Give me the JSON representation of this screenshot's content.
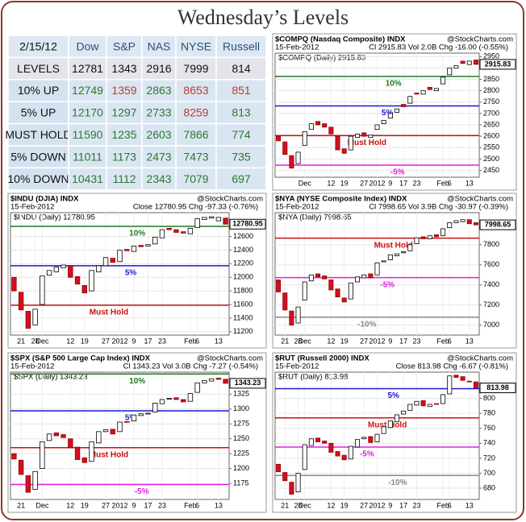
{
  "title": "Wednesday’s Levels",
  "table": {
    "columns": [
      "2/15/12",
      "Dow",
      "S&P",
      "NAS",
      "NYSE",
      "Russell"
    ],
    "rows": [
      [
        "LEVELS",
        "12781",
        "1343",
        "2916",
        "7999",
        "814"
      ],
      [
        "10% UP",
        "12749",
        "1359",
        "2863",
        "8653",
        "851"
      ],
      [
        "5% UP",
        "12170",
        "1297",
        "2733",
        "8259",
        "813"
      ],
      [
        "MUST HOLD",
        "11590",
        "1235",
        "2603",
        "7866",
        "774"
      ],
      [
        "5% DOWN",
        "11011",
        "1173",
        "2473",
        "7473",
        "735"
      ],
      [
        "10% DOWN",
        "10431",
        "1112",
        "2343",
        "7079",
        "697"
      ]
    ]
  },
  "chart_data": [
    {
      "type": "candlestick",
      "title": "$COMPQ (Nasdaq Composite) INDX",
      "source": "@StockCharts.com",
      "date": "15-Feb-2012",
      "stats": "Cl 2915.83 Vol 2.0B Chg -16.00 (-0.55%)",
      "legend": "$COMPQ (Daily) 2915.83",
      "categories": [
        null,
        null,
        null,
        null,
        "Dec",
        null,
        null,
        null,
        "12",
        null,
        "19",
        null,
        null,
        "27",
        null,
        "2012",
        null,
        "9",
        null,
        "17",
        null,
        "23",
        null,
        null,
        null,
        "Feb",
        "6",
        null,
        null,
        "13",
        null
      ],
      "open": [
        2600,
        2575,
        2515,
        2480,
        2560,
        2630,
        2665,
        2655,
        2640,
        2600,
        2545,
        2540,
        2595,
        2615,
        2595,
        2630,
        2655,
        2680,
        2705,
        2740,
        2745,
        2790,
        2785,
        2815,
        2800,
        2830,
        2870,
        2900,
        2930,
        2915,
        2935
      ],
      "close": [
        2580,
        2520,
        2460,
        2530,
        2620,
        2655,
        2650,
        2640,
        2610,
        2540,
        2525,
        2600,
        2610,
        2600,
        2605,
        2650,
        2670,
        2700,
        2720,
        2730,
        2775,
        2785,
        2800,
        2805,
        2810,
        2860,
        2900,
        2910,
        2920,
        2930,
        2915.83
      ],
      "levels": [
        {
          "name": "10%",
          "value": 2863,
          "color": "#1f7a1f"
        },
        {
          "name": "5%",
          "value": 2733,
          "color": "#1a1acc"
        },
        {
          "name": "Must Hold",
          "value": 2603,
          "color": "#cc1111"
        },
        {
          "name": "-5%",
          "value": 2473,
          "color": "#e020e0"
        }
      ],
      "ylim": [
        2420,
        2965
      ],
      "yticks": [
        2450,
        2500,
        2550,
        2600,
        2650,
        2700,
        2750,
        2800,
        2850,
        2900,
        2950
      ]
    },
    {
      "type": "candlestick",
      "title": "$INDU (DJIA) INDX",
      "source": "@StockCharts.com",
      "date": "15-Feb-2012",
      "stats": "Close 12780.95 Chg -97.33 (-0.76%)",
      "legend": "$INDU (Daily) 12780.95",
      "categories": [
        null,
        "21",
        null,
        "28",
        "Dec",
        null,
        null,
        null,
        "12",
        null,
        "19",
        null,
        null,
        "27",
        null,
        "2012",
        null,
        "9",
        null,
        "17",
        null,
        "23",
        null,
        null,
        null,
        "Feb",
        "6",
        null,
        null,
        "13",
        null
      ],
      "open": [
        12000,
        11780,
        11500,
        11300,
        11600,
        12030,
        12080,
        12140,
        12170,
        12010,
        11880,
        11800,
        12080,
        12170,
        12280,
        12230,
        12410,
        12380,
        12470,
        12460,
        12490,
        12580,
        12720,
        12700,
        12670,
        12640,
        12730,
        12850,
        12870,
        12830,
        12870
      ],
      "close": [
        11800,
        11520,
        11250,
        11530,
        12020,
        12100,
        12150,
        12180,
        12000,
        11900,
        11770,
        12100,
        12170,
        12290,
        12220,
        12400,
        12390,
        12460,
        12450,
        12480,
        12590,
        12700,
        12700,
        12660,
        12650,
        12720,
        12860,
        12880,
        12890,
        12880,
        12780.95
      ],
      "levels": [
        {
          "name": "10%",
          "value": 12749,
          "color": "#1f7a1f"
        },
        {
          "name": "5%",
          "value": 12170,
          "color": "#1a1acc"
        },
        {
          "name": "Must Hold",
          "value": 11590,
          "color": "#cc1111"
        }
      ],
      "ylim": [
        11150,
        12950
      ],
      "yticks": [
        11200,
        11400,
        11600,
        11800,
        12000,
        12200,
        12400,
        12600
      ]
    },
    {
      "type": "candlestick",
      "title": "$NYA (NYSE Composite Index) INDX",
      "source": "@StockCharts.com",
      "date": "15-Feb-2012",
      "stats": "Cl 7998.65 Vol 3.9B Chg -30.97 (-0.39%)",
      "legend": "$NYA (Daily) 7998.65",
      "categories": [
        null,
        "21",
        null,
        "28",
        "Dec",
        null,
        null,
        null,
        "12",
        null,
        "19",
        null,
        null,
        "27",
        null,
        "2012",
        null,
        "9",
        null,
        "17",
        null,
        "23",
        null,
        null,
        null,
        "Feb",
        "6",
        null,
        null,
        "13",
        null
      ],
      "open": [
        7450,
        7320,
        7140,
        7020,
        7250,
        7440,
        7510,
        7490,
        7450,
        7360,
        7270,
        7260,
        7430,
        7470,
        7510,
        7500,
        7630,
        7650,
        7690,
        7720,
        7740,
        7810,
        7880,
        7860,
        7900,
        7890,
        7970,
        8020,
        8030,
        8050,
        8020
      ],
      "close": [
        7330,
        7150,
        7000,
        7180,
        7430,
        7500,
        7480,
        7460,
        7350,
        7280,
        7230,
        7420,
        7480,
        7500,
        7470,
        7620,
        7640,
        7700,
        7710,
        7730,
        7800,
        7870,
        7860,
        7890,
        7880,
        7960,
        8020,
        8040,
        8050,
        8010,
        7998.65
      ],
      "levels": [
        {
          "name": "Must Hold",
          "value": 7866,
          "color": "#cc1111"
        },
        {
          "name": "-5%",
          "value": 7473,
          "color": "#e020e0"
        },
        {
          "name": "-10%",
          "value": 7079,
          "color": "#888888"
        }
      ],
      "ylim": [
        6900,
        8120
      ],
      "yticks": [
        7000,
        7200,
        7400,
        7600,
        7800
      ]
    },
    {
      "type": "candlestick",
      "title": "$SPX (S&P 500 Large Cap Index) INDX",
      "source": "@StockCharts.com",
      "date": "15-Feb-2012",
      "stats": "Cl 1343.23 Vol 3.0B Chg -7.27 (-0.54%)",
      "legend": "$SPX (Daily) 1343.23",
      "categories": [
        null,
        "21",
        null,
        null,
        "Dec",
        null,
        null,
        null,
        "12",
        null,
        "19",
        null,
        null,
        "27",
        null,
        "2012",
        null,
        "9",
        null,
        "17",
        null,
        "23",
        null,
        null,
        null,
        "Feb",
        "6",
        null,
        null,
        "13",
        null
      ],
      "open": [
        1225,
        1214,
        1188,
        1165,
        1200,
        1247,
        1260,
        1257,
        1250,
        1236,
        1218,
        1212,
        1243,
        1262,
        1266,
        1262,
        1279,
        1280,
        1289,
        1292,
        1295,
        1309,
        1317,
        1319,
        1316,
        1313,
        1328,
        1344,
        1347,
        1352,
        1350
      ],
      "close": [
        1216,
        1190,
        1160,
        1195,
        1245,
        1258,
        1255,
        1252,
        1235,
        1215,
        1210,
        1245,
        1262,
        1265,
        1258,
        1278,
        1278,
        1290,
        1292,
        1293,
        1310,
        1316,
        1318,
        1316,
        1312,
        1326,
        1344,
        1348,
        1351,
        1350,
        1343.23
      ],
      "levels": [
        {
          "name": "10%",
          "value": 1359,
          "color": "#1f7a1f"
        },
        {
          "name": "5%",
          "value": 1297,
          "color": "#1a1acc"
        },
        {
          "name": "Must Hold",
          "value": 1235,
          "color": "#cc1111"
        },
        {
          "name": "-5%",
          "value": 1173,
          "color": "#e020e0"
        }
      ],
      "ylim": [
        1148,
        1362
      ],
      "yticks": [
        1175,
        1200,
        1225,
        1250,
        1275,
        1300,
        1325
      ]
    },
    {
      "type": "candlestick",
      "title": "$RUT (Russell 2000) INDX",
      "source": "@StockCharts.com",
      "date": "15-Feb-2012",
      "stats": "Close 813.98 Chg -6.67 (-0.81%)",
      "legend": "$RUT (Daily) 813.98",
      "categories": [
        null,
        "21",
        null,
        "28",
        "Dec",
        null,
        null,
        null,
        "12",
        null,
        "19",
        null,
        null,
        "27",
        null,
        "2012",
        null,
        "9",
        null,
        "17",
        null,
        "23",
        null,
        null,
        null,
        "Feb",
        "6",
        null,
        null,
        "13",
        null
      ],
      "open": [
        712,
        701,
        688,
        675,
        705,
        737,
        747,
        743,
        740,
        729,
        724,
        719,
        735,
        746,
        749,
        742,
        753,
        761,
        769,
        779,
        784,
        791,
        797,
        789,
        793,
        793,
        806,
        831,
        829,
        823,
        822
      ],
      "close": [
        702,
        690,
        672,
        700,
        738,
        746,
        742,
        740,
        728,
        723,
        718,
        736,
        745,
        748,
        741,
        752,
        762,
        770,
        778,
        783,
        792,
        796,
        790,
        792,
        792,
        805,
        830,
        828,
        824,
        822,
        813.98
      ],
      "levels": [
        {
          "name": "5%",
          "value": 813,
          "color": "#1a1acc"
        },
        {
          "name": "Must Hold",
          "value": 774,
          "color": "#cc1111"
        },
        {
          "name": "-5%",
          "value": 735,
          "color": "#e020e0"
        },
        {
          "name": "-10%",
          "value": 697,
          "color": "#888888"
        }
      ],
      "ylim": [
        665,
        835
      ],
      "yticks": [
        680,
        700,
        720,
        740,
        760,
        780,
        800
      ]
    }
  ]
}
